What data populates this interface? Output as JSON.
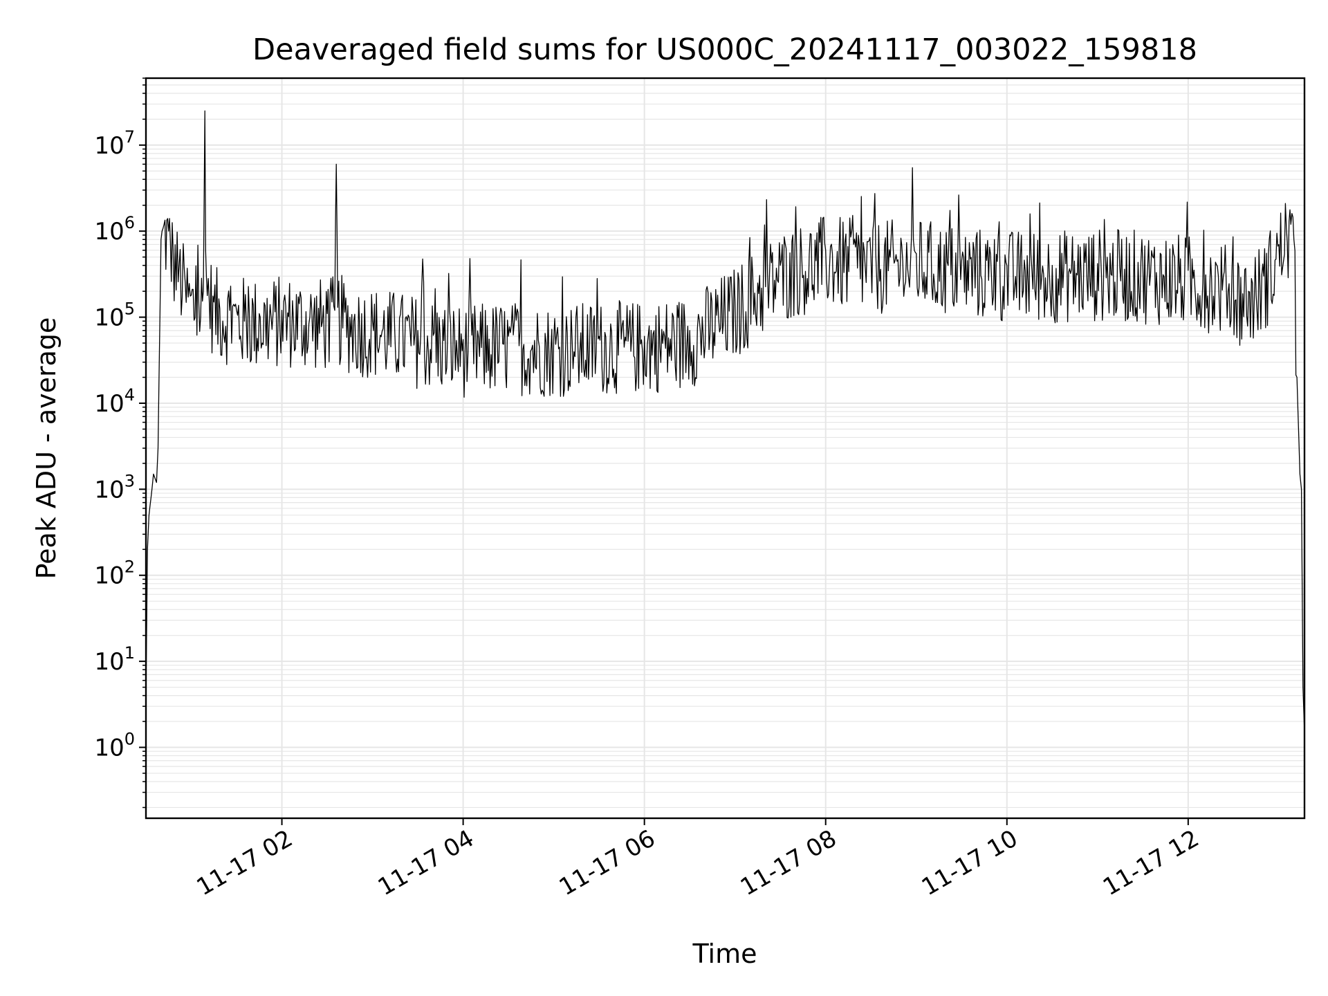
{
  "chart_data": {
    "type": "line",
    "title": "Deaveraged field sums for US000C_20241117_003022_159818",
    "xlabel": "Time",
    "ylabel": "Peak ADU - average",
    "yscale": "log",
    "grid": true,
    "line_color": "#000000",
    "grid_color": "#e6e6e6",
    "xlim": [
      "2024-11-17 00:30",
      "2024-11-17 13:17"
    ],
    "ylim": [
      0.15,
      60000000
    ],
    "x_ticks": [
      {
        "value": "2024-11-17 02:00",
        "label": "11-17 02"
      },
      {
        "value": "2024-11-17 04:00",
        "label": "11-17 04"
      },
      {
        "value": "2024-11-17 06:00",
        "label": "11-17 06"
      },
      {
        "value": "2024-11-17 08:00",
        "label": "11-17 08"
      },
      {
        "value": "2024-11-17 10:00",
        "label": "11-17 10"
      },
      {
        "value": "2024-11-17 12:00",
        "label": "11-17 12"
      }
    ],
    "y_ticks": [
      {
        "value": 1,
        "base": "10",
        "exp": "0"
      },
      {
        "value": 10,
        "base": "10",
        "exp": "1"
      },
      {
        "value": 100,
        "base": "10",
        "exp": "2"
      },
      {
        "value": 1000,
        "base": "10",
        "exp": "3"
      },
      {
        "value": 10000,
        "base": "10",
        "exp": "4"
      },
      {
        "value": 100000,
        "base": "10",
        "exp": "5"
      },
      {
        "value": 1000000,
        "base": "10",
        "exp": "6"
      },
      {
        "value": 10000000,
        "base": "10",
        "exp": "7"
      }
    ],
    "series": [
      {
        "x": [
          "2024-11-17 00:30",
          "2024-11-17 00:31",
          "2024-11-17 00:32",
          "2024-11-17 00:34",
          "2024-11-17 00:35",
          "2024-11-17 00:37",
          "2024-11-17 00:38",
          "2024-11-17 00:40",
          "2024-11-17 00:42",
          "2024-11-17 00:45",
          "2024-11-17 00:48",
          "2024-11-17 00:52",
          "2024-11-17 00:56",
          "2024-11-17 01:00",
          "2024-11-17 01:05",
          "2024-11-17 01:08",
          "2024-11-17 01:09",
          "2024-11-17 01:10",
          "2024-11-17 01:15",
          "2024-11-17 01:30",
          "2024-11-17 01:45",
          "2024-11-17 02:00",
          "2024-11-17 02:30",
          "2024-11-17 02:35",
          "2024-11-17 02:36",
          "2024-11-17 02:37",
          "2024-11-17 02:45",
          "2024-11-17 03:00",
          "2024-11-17 03:30",
          "2024-11-17 04:00",
          "2024-11-17 04:30",
          "2024-11-17 05:00",
          "2024-11-17 05:30",
          "2024-11-17 06:00",
          "2024-11-17 06:30",
          "2024-11-17 07:00",
          "2024-11-17 07:15",
          "2024-11-17 07:30",
          "2024-11-17 08:00",
          "2024-11-17 08:30",
          "2024-11-17 09:00",
          "2024-11-17 09:30",
          "2024-11-17 10:00",
          "2024-11-17 10:30",
          "2024-11-17 11:00",
          "2024-11-17 11:30",
          "2024-11-17 12:00",
          "2024-11-17 12:20",
          "2024-11-17 12:40",
          "2024-11-17 12:50",
          "2024-11-17 13:00",
          "2024-11-17 13:05",
          "2024-11-17 13:08",
          "2024-11-17 13:10",
          "2024-11-17 13:12",
          "2024-11-17 13:14",
          "2024-11-17 13:15",
          "2024-11-17 13:16",
          "2024-11-17 13:17"
        ],
        "y": [
          4,
          200,
          500,
          1000,
          1500,
          1200,
          3000,
          800000,
          1200000,
          1000000,
          600000,
          400000,
          250000,
          180000,
          150000,
          200000,
          25000000,
          300000,
          150000,
          120000,
          110000,
          120000,
          110000,
          120000,
          6000000,
          130000,
          100000,
          90000,
          70000,
          55000,
          60000,
          55000,
          60000,
          60000,
          70000,
          150000,
          250000,
          400000,
          600000,
          500000,
          550000,
          450000,
          400000,
          400000,
          420000,
          400000,
          350000,
          300000,
          200000,
          300000,
          700000,
          1100000,
          1200000,
          800000,
          20000,
          1500,
          1000,
          5,
          1.5
        ]
      }
    ]
  }
}
